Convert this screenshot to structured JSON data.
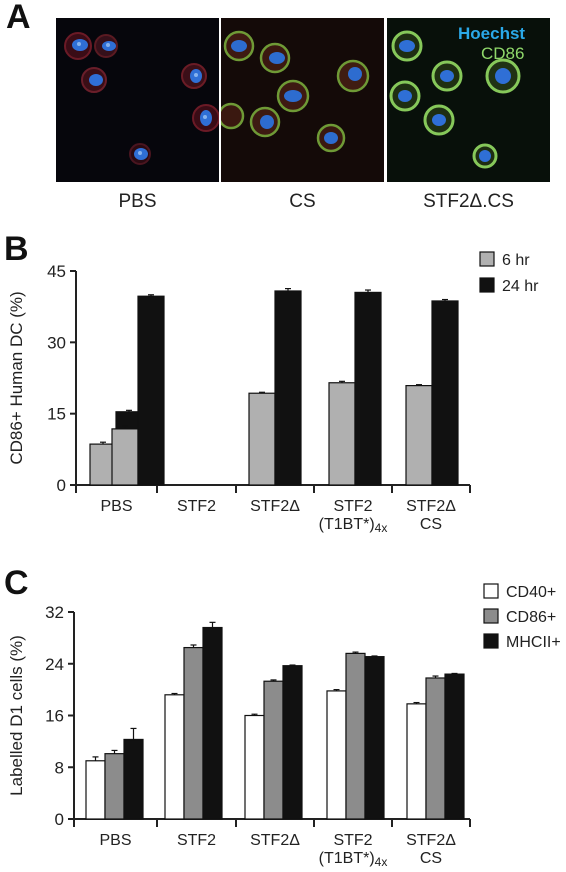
{
  "panel_a": {
    "letter": "A",
    "legend": {
      "stain1": "Hoechst",
      "stain1_color": "#2aa8e8",
      "stain2": "CD86",
      "stain2_color": "#8fd86a"
    },
    "images": [
      {
        "label": "PBS"
      },
      {
        "label": "CS"
      },
      {
        "label": "STF2Δ.CS"
      }
    ]
  },
  "panel_b": {
    "letter": "B",
    "ylabel": "CD86+ Human DC (%)",
    "legend": [
      "6 hr",
      "24 hr"
    ]
  },
  "panel_c": {
    "letter": "C",
    "ylabel": "Labelled D1 cells (%)",
    "legend": [
      "CD40+",
      "CD86+",
      "MHCII+"
    ]
  },
  "colors": {
    "grey_light": "#b0b0b0",
    "grey_mid": "#8c8c8c",
    "black": "#111111",
    "white": "#ffffff"
  },
  "chart_data": [
    {
      "type": "bar",
      "panel": "B",
      "categories": [
        [
          "PBS"
        ],
        [
          "STF2"
        ],
        [
          "STF2Δ"
        ],
        [
          "STF2",
          "(T1BT*)4x"
        ],
        [
          "STF2Δ",
          "CS"
        ]
      ],
      "series": [
        {
          "name": "6 hr",
          "values": [
            8.6,
            11.8,
            19.3,
            21.5,
            20.9
          ],
          "errors": [
            0.4,
            0.6,
            0.2,
            0.3,
            0.2
          ],
          "color": "#b0b0b0"
        },
        {
          "name": "24 hr",
          "values": [
            15.4,
            39.7,
            40.8,
            40.5,
            38.7
          ],
          "errors": [
            0.3,
            0.3,
            0.5,
            0.5,
            0.3
          ],
          "color": "#111111"
        }
      ],
      "ylabel": "CD86+ Human DC (%)",
      "xlabel": "",
      "ylim": [
        0,
        45
      ],
      "yticks": [
        0,
        15,
        30,
        45
      ],
      "grid": false,
      "legend_position": "top-right"
    },
    {
      "type": "bar",
      "panel": "C",
      "categories": [
        [
          "PBS"
        ],
        [
          "STF2"
        ],
        [
          "STF2Δ"
        ],
        [
          "STF2",
          "(T1BT*)4x"
        ],
        [
          "STF2Δ",
          "CS"
        ]
      ],
      "series": [
        {
          "name": "CD40+",
          "values": [
            9.0,
            19.2,
            16.0,
            19.8,
            17.8
          ],
          "errors": [
            0.6,
            0.2,
            0.2,
            0.2,
            0.2
          ],
          "color": "#ffffff"
        },
        {
          "name": "CD86+",
          "values": [
            10.1,
            26.5,
            21.3,
            25.6,
            21.8
          ],
          "errors": [
            0.5,
            0.4,
            0.2,
            0.2,
            0.3
          ],
          "color": "#8c8c8c"
        },
        {
          "name": "MHCII+",
          "values": [
            12.3,
            29.6,
            23.7,
            25.1,
            22.4
          ],
          "errors": [
            1.7,
            0.8,
            0.1,
            0.1,
            0.1
          ],
          "color": "#111111"
        }
      ],
      "ylabel": "Labelled D1 cells (%)",
      "xlabel": "",
      "ylim": [
        0,
        32
      ],
      "yticks": [
        0,
        8,
        16,
        24,
        32
      ],
      "grid": false,
      "legend_position": "top-right"
    }
  ]
}
